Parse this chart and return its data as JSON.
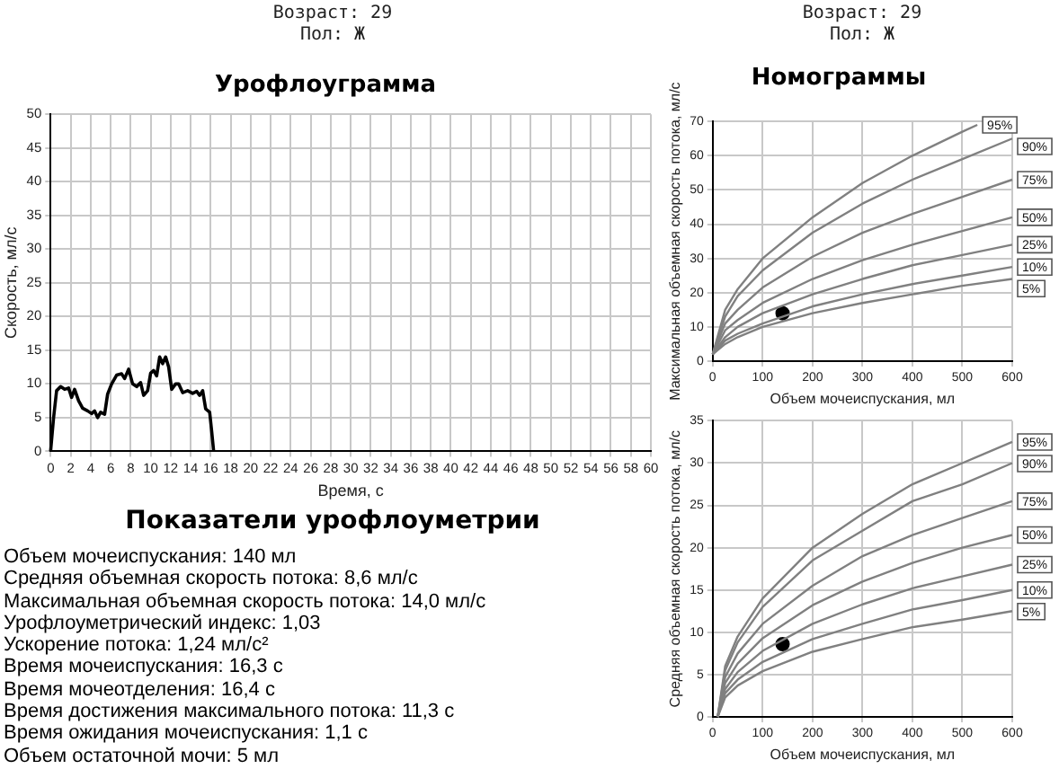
{
  "chart_data": [
    {
      "type": "other",
      "annotations": [
        "Возраст: 29",
        "Пол: Ж"
      ]
    },
    {
      "type": "line",
      "title": "Урофлоуграмма",
      "xlabel": "Время, с",
      "ylabel": "Скорость, мл/с",
      "xlim": [
        0,
        60
      ],
      "xticks": [
        0,
        2,
        4,
        6,
        8,
        10,
        12,
        14,
        16,
        18,
        20,
        22,
        24,
        26,
        28,
        30,
        32,
        34,
        36,
        38,
        40,
        42,
        44,
        46,
        48,
        50,
        52,
        54,
        56,
        58,
        60
      ],
      "ylim": [
        0,
        50
      ],
      "yticks": [
        0,
        5,
        10,
        15,
        20,
        25,
        30,
        35,
        40,
        45,
        50
      ],
      "grid": true,
      "legend": false,
      "marker": "none",
      "series": [
        {
          "color": "#000000",
          "x": [
            0,
            0.3,
            0.6,
            1,
            1.4,
            1.8,
            2.1,
            2.4,
            2.8,
            3.2,
            3.7,
            4.1,
            4.4,
            4.7,
            5,
            5.4,
            5.7,
            6.1,
            6.6,
            7.1,
            7.4,
            7.8,
            8.2,
            8.6,
            9,
            9.3,
            9.7,
            10,
            10.3,
            10.6,
            10.9,
            11.2,
            11.5,
            11.8,
            12.1,
            12.5,
            12.8,
            13.2,
            13.7,
            14.2,
            14.6,
            14.9,
            15.2,
            15.5,
            15.9,
            16.1,
            16.3
          ],
          "values": [
            0,
            5,
            9,
            9.6,
            9.2,
            9.4,
            8,
            9.2,
            7.5,
            6.4,
            6,
            5.6,
            6,
            5,
            5.8,
            5.5,
            8.5,
            10,
            11.3,
            11.5,
            10.8,
            12.2,
            10,
            9.6,
            10.2,
            8.3,
            9,
            11.6,
            12,
            11.2,
            14,
            13,
            14,
            12.5,
            9.2,
            10,
            10,
            8.7,
            9,
            8.6,
            8.9,
            8.3,
            9,
            6.3,
            5.8,
            3,
            0
          ]
        }
      ]
    },
    {
      "type": "other",
      "title": "Показатели урофлоуметрии",
      "annotations": [
        "Объем мочеиспускания: 140 мл",
        "Средняя объемная скорость потока: 8,6 мл/с",
        "Максимальная объемная скорость потока: 14,0 мл/с",
        "Урофлоуметрический индекс: 1,03",
        "Ускорение потока: 1,24 мл/с²",
        "Время мочеиспускания: 16,3 с",
        "Время мочеотделения: 16,4 с",
        "Время достижения максимального потока: 11,3 с",
        "Время ожидания мочеиспускания: 1,1 с",
        "Объем остаточной мочи: 5 мл"
      ]
    },
    {
      "type": "other",
      "annotations": [
        "Возраст: 29",
        "Пол: Ж"
      ]
    },
    {
      "type": "line",
      "title": "Номограммы",
      "xlabel": "Объем мочеиспускания, мл",
      "ylabel": "Максимальная объемная скорость потока, мл/с",
      "xlim": [
        0,
        600
      ],
      "xticks": [
        0,
        100,
        200,
        300,
        400,
        500,
        600
      ],
      "ylim": [
        0,
        70
      ],
      "yticks": [
        0,
        10,
        20,
        30,
        40,
        50,
        60,
        70
      ],
      "grid": true,
      "legend": false,
      "marker": "none",
      "series": [
        {
          "name": "95%",
          "color": "#808080",
          "x": [
            0,
            25,
            50,
            100,
            200,
            300,
            400,
            500,
            530
          ],
          "values": [
            2,
            15,
            21,
            30,
            42,
            52,
            60,
            67,
            69
          ]
        },
        {
          "name": "90%",
          "color": "#808080",
          "x": [
            0,
            25,
            50,
            100,
            200,
            300,
            400,
            500,
            600
          ],
          "values": [
            2,
            13,
            19,
            26.5,
            37.5,
            46,
            53,
            59,
            65
          ]
        },
        {
          "name": "75%",
          "color": "#808080",
          "x": [
            0,
            25,
            50,
            100,
            200,
            300,
            400,
            500,
            600
          ],
          "values": [
            2,
            11,
            15,
            21.5,
            30.5,
            37.5,
            43,
            48,
            53
          ]
        },
        {
          "name": "50%",
          "color": "#808080",
          "x": [
            0,
            25,
            50,
            100,
            200,
            300,
            400,
            500,
            600
          ],
          "values": [
            2,
            9,
            12,
            17,
            24,
            29.5,
            34,
            38,
            42
          ]
        },
        {
          "name": "25%",
          "color": "#808080",
          "x": [
            0,
            25,
            50,
            100,
            200,
            300,
            400,
            500,
            600
          ],
          "values": [
            2,
            7,
            10,
            14,
            19.5,
            24,
            28,
            31,
            34
          ]
        },
        {
          "name": "10%",
          "color": "#808080",
          "x": [
            0,
            25,
            50,
            100,
            200,
            300,
            400,
            500,
            600
          ],
          "values": [
            2,
            6,
            8,
            11,
            16,
            19.5,
            22.5,
            25,
            27.5
          ]
        },
        {
          "name": "5%",
          "color": "#808080",
          "x": [
            0,
            25,
            50,
            100,
            200,
            300,
            400,
            500,
            600
          ],
          "values": [
            2,
            5,
            7,
            10,
            14,
            17,
            19.5,
            22,
            24
          ]
        },
        {
          "type": "scatter",
          "marker": "circle",
          "color": "#000000",
          "x": [
            140
          ],
          "values": [
            14
          ]
        }
      ]
    },
    {
      "type": "line",
      "xlabel": "Объем мочеиспускания, мл",
      "ylabel": "Средняя объемная скорость потока, мл/с",
      "xlim": [
        0,
        600
      ],
      "xticks": [
        0,
        100,
        200,
        300,
        400,
        500,
        600
      ],
      "ylim": [
        0,
        35
      ],
      "yticks": [
        0,
        5,
        10,
        15,
        20,
        25,
        30,
        35
      ],
      "grid": true,
      "legend": false,
      "marker": "none",
      "series": [
        {
          "name": "95%",
          "color": "#808080",
          "x": [
            10,
            25,
            50,
            100,
            200,
            300,
            400,
            500,
            600
          ],
          "values": [
            0,
            6,
            9.5,
            14,
            20,
            24,
            27.5,
            30,
            32.5
          ]
        },
        {
          "name": "90%",
          "color": "#808080",
          "x": [
            10,
            25,
            50,
            100,
            200,
            300,
            400,
            500,
            600
          ],
          "values": [
            0,
            5.5,
            8.8,
            13,
            18.5,
            22,
            25.5,
            27.5,
            30
          ]
        },
        {
          "name": "75%",
          "color": "#808080",
          "x": [
            10,
            25,
            50,
            100,
            200,
            300,
            400,
            500,
            600
          ],
          "values": [
            0,
            4.7,
            7.5,
            11,
            15.5,
            19,
            21.5,
            23.5,
            25.5
          ]
        },
        {
          "name": "50%",
          "color": "#808080",
          "x": [
            10,
            25,
            50,
            100,
            200,
            300,
            400,
            500,
            600
          ],
          "values": [
            0,
            4,
            6.3,
            9.3,
            13.2,
            16,
            18.2,
            20,
            21.5
          ]
        },
        {
          "name": "25%",
          "color": "#808080",
          "x": [
            10,
            25,
            50,
            100,
            200,
            300,
            400,
            500,
            600
          ],
          "values": [
            0,
            3.3,
            5.3,
            7.8,
            11,
            13.3,
            15.2,
            16.6,
            18
          ]
        },
        {
          "name": "10%",
          "color": "#808080",
          "x": [
            10,
            25,
            50,
            100,
            200,
            300,
            400,
            500,
            600
          ],
          "values": [
            0,
            2.8,
            4.4,
            6.5,
            9.2,
            11,
            12.7,
            13.8,
            15
          ]
        },
        {
          "name": "5%",
          "color": "#808080",
          "x": [
            10,
            25,
            50,
            100,
            200,
            300,
            400,
            500,
            600
          ],
          "values": [
            0,
            2.3,
            3.7,
            5.4,
            7.7,
            9.2,
            10.6,
            11.5,
            12.5
          ]
        },
        {
          "type": "scatter",
          "marker": "circle",
          "color": "#000000",
          "x": [
            140
          ],
          "values": [
            8.6
          ]
        }
      ]
    }
  ]
}
